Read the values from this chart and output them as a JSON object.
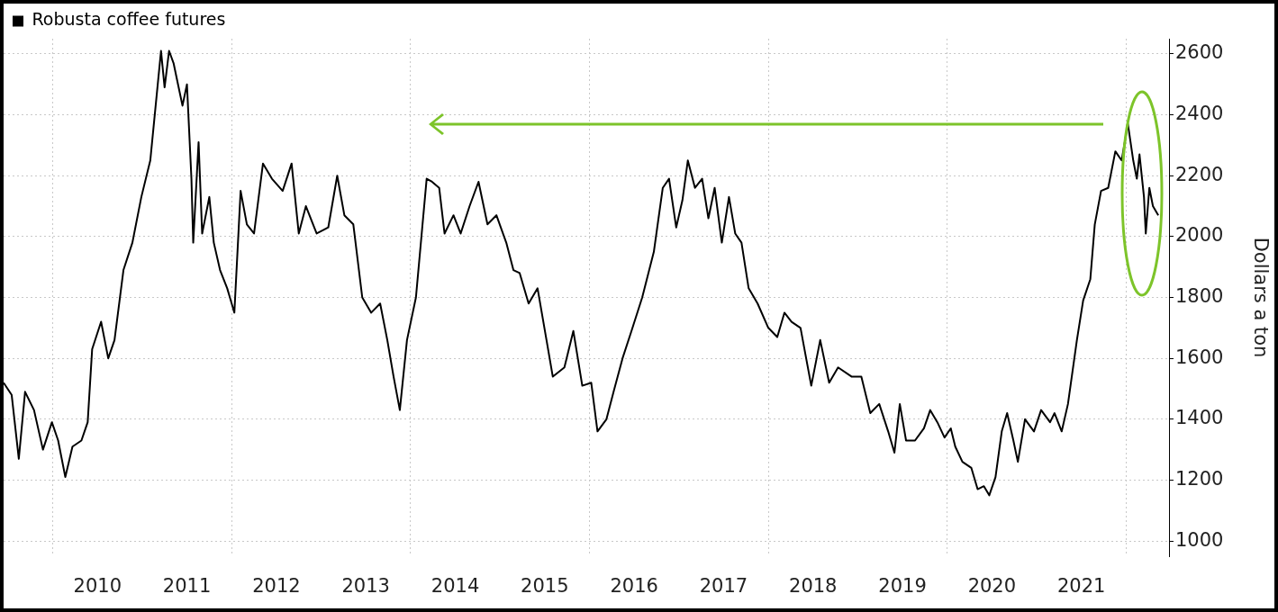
{
  "chart_data": {
    "type": "line",
    "ylabel": "Dollars a ton",
    "legend": "top left",
    "grid": true,
    "marker": "none",
    "line_style": "solid",
    "xlim": [
      2009.45,
      2022.48
    ],
    "ylim": [
      950,
      2650
    ],
    "xticks": [
      {
        "value": 2010,
        "label": null
      },
      {
        "value": 2010.5,
        "label": "2010"
      },
      {
        "value": 2011.5,
        "label": "2011"
      },
      {
        "value": 2012,
        "label": null
      },
      {
        "value": 2012.5,
        "label": "2012"
      },
      {
        "value": 2013.5,
        "label": "2013"
      },
      {
        "value": 2014,
        "label": null
      },
      {
        "value": 2014.5,
        "label": "2014"
      },
      {
        "value": 2015.5,
        "label": "2015"
      },
      {
        "value": 2016,
        "label": null
      },
      {
        "value": 2016.5,
        "label": "2016"
      },
      {
        "value": 2017.5,
        "label": "2017"
      },
      {
        "value": 2018,
        "label": null
      },
      {
        "value": 2018.5,
        "label": "2018"
      },
      {
        "value": 2019.5,
        "label": "2019"
      },
      {
        "value": 2020,
        "label": null
      },
      {
        "value": 2020.5,
        "label": "2020"
      },
      {
        "value": 2021.5,
        "label": "2021"
      },
      {
        "value": 2022,
        "label": null
      }
    ],
    "yticks": [
      1000,
      1200,
      1400,
      1600,
      1800,
      2000,
      2200,
      2400,
      2600
    ],
    "x": [
      2009.45,
      2009.54,
      2009.62,
      2009.69,
      2009.79,
      2009.89,
      2009.99,
      2010.06,
      2010.14,
      2010.22,
      2010.32,
      2010.39,
      2010.44,
      2010.54,
      2010.62,
      2010.69,
      2010.79,
      2010.89,
      2010.99,
      2011.09,
      2011.17,
      2011.21,
      2011.25,
      2011.3,
      2011.35,
      2011.4,
      2011.45,
      2011.5,
      2011.55,
      2011.57,
      2011.63,
      2011.67,
      2011.75,
      2011.8,
      2011.87,
      2011.95,
      2012.03,
      2012.1,
      2012.17,
      2012.25,
      2012.35,
      2012.45,
      2012.57,
      2012.67,
      2012.75,
      2012.83,
      2012.95,
      2013.08,
      2013.18,
      2013.26,
      2013.36,
      2013.46,
      2013.56,
      2013.66,
      2013.74,
      2013.81,
      2013.88,
      2013.96,
      2014.06,
      2014.18,
      2014.24,
      2014.32,
      2014.38,
      2014.48,
      2014.56,
      2014.66,
      2014.76,
      2014.86,
      2014.96,
      2015.07,
      2015.15,
      2015.22,
      2015.32,
      2015.42,
      2015.52,
      2015.59,
      2015.72,
      2015.82,
      2015.92,
      2016.02,
      2016.09,
      2016.19,
      2016.27,
      2016.37,
      2016.47,
      2016.59,
      2016.72,
      2016.82,
      2016.89,
      2016.97,
      2017.04,
      2017.1,
      2017.18,
      2017.26,
      2017.33,
      2017.4,
      2017.48,
      2017.56,
      2017.63,
      2017.7,
      2017.78,
      2017.88,
      2018.0,
      2018.1,
      2018.18,
      2018.26,
      2018.36,
      2018.48,
      2018.58,
      2018.68,
      2018.78,
      2018.93,
      2019.04,
      2019.14,
      2019.24,
      2019.34,
      2019.41,
      2019.47,
      2019.54,
      2019.64,
      2019.74,
      2019.81,
      2019.89,
      2019.97,
      2020.04,
      2020.09,
      2020.17,
      2020.27,
      2020.34,
      2020.41,
      2020.47,
      2020.54,
      2020.61,
      2020.67,
      2020.74,
      2020.79,
      2020.87,
      2020.97,
      2021.05,
      2021.15,
      2021.2,
      2021.28,
      2021.35,
      2021.45,
      2021.52,
      2021.6,
      2021.65,
      2021.72,
      2021.8,
      2021.88,
      2021.95,
      2022.02,
      2022.08,
      2022.12,
      2022.15,
      2022.2,
      2022.22,
      2022.26,
      2022.3,
      2022.36
    ],
    "series": [
      {
        "name": "Robusta coffee futures",
        "color": "#000000",
        "values": [
          1520,
          1480,
          1270,
          1490,
          1430,
          1300,
          1390,
          1330,
          1210,
          1310,
          1330,
          1390,
          1630,
          1720,
          1600,
          1660,
          1890,
          1980,
          2130,
          2250,
          2490,
          2610,
          2490,
          2610,
          2570,
          2500,
          2430,
          2500,
          2190,
          1980,
          2310,
          2010,
          2130,
          1980,
          1890,
          1830,
          1750,
          2150,
          2040,
          2010,
          2240,
          2190,
          2150,
          2240,
          2010,
          2100,
          2010,
          2030,
          2200,
          2070,
          2040,
          1800,
          1750,
          1780,
          1660,
          1540,
          1430,
          1660,
          1800,
          2190,
          2180,
          2160,
          2010,
          2070,
          2010,
          2100,
          2180,
          2040,
          2070,
          1980,
          1890,
          1880,
          1780,
          1830,
          1660,
          1540,
          1570,
          1690,
          1510,
          1520,
          1360,
          1400,
          1490,
          1600,
          1690,
          1800,
          1950,
          2160,
          2190,
          2030,
          2120,
          2250,
          2160,
          2190,
          2060,
          2160,
          1980,
          2130,
          2010,
          1980,
          1830,
          1780,
          1700,
          1670,
          1750,
          1720,
          1700,
          1510,
          1660,
          1520,
          1570,
          1540,
          1540,
          1420,
          1450,
          1360,
          1290,
          1450,
          1330,
          1330,
          1370,
          1430,
          1390,
          1340,
          1370,
          1310,
          1260,
          1240,
          1170,
          1180,
          1150,
          1210,
          1360,
          1420,
          1330,
          1260,
          1400,
          1360,
          1430,
          1390,
          1420,
          1360,
          1450,
          1660,
          1790,
          1860,
          2040,
          2150,
          2160,
          2280,
          2250,
          2370,
          2250,
          2190,
          2270,
          2130,
          2010,
          2160,
          2100,
          2070
        ]
      }
    ]
  }
}
